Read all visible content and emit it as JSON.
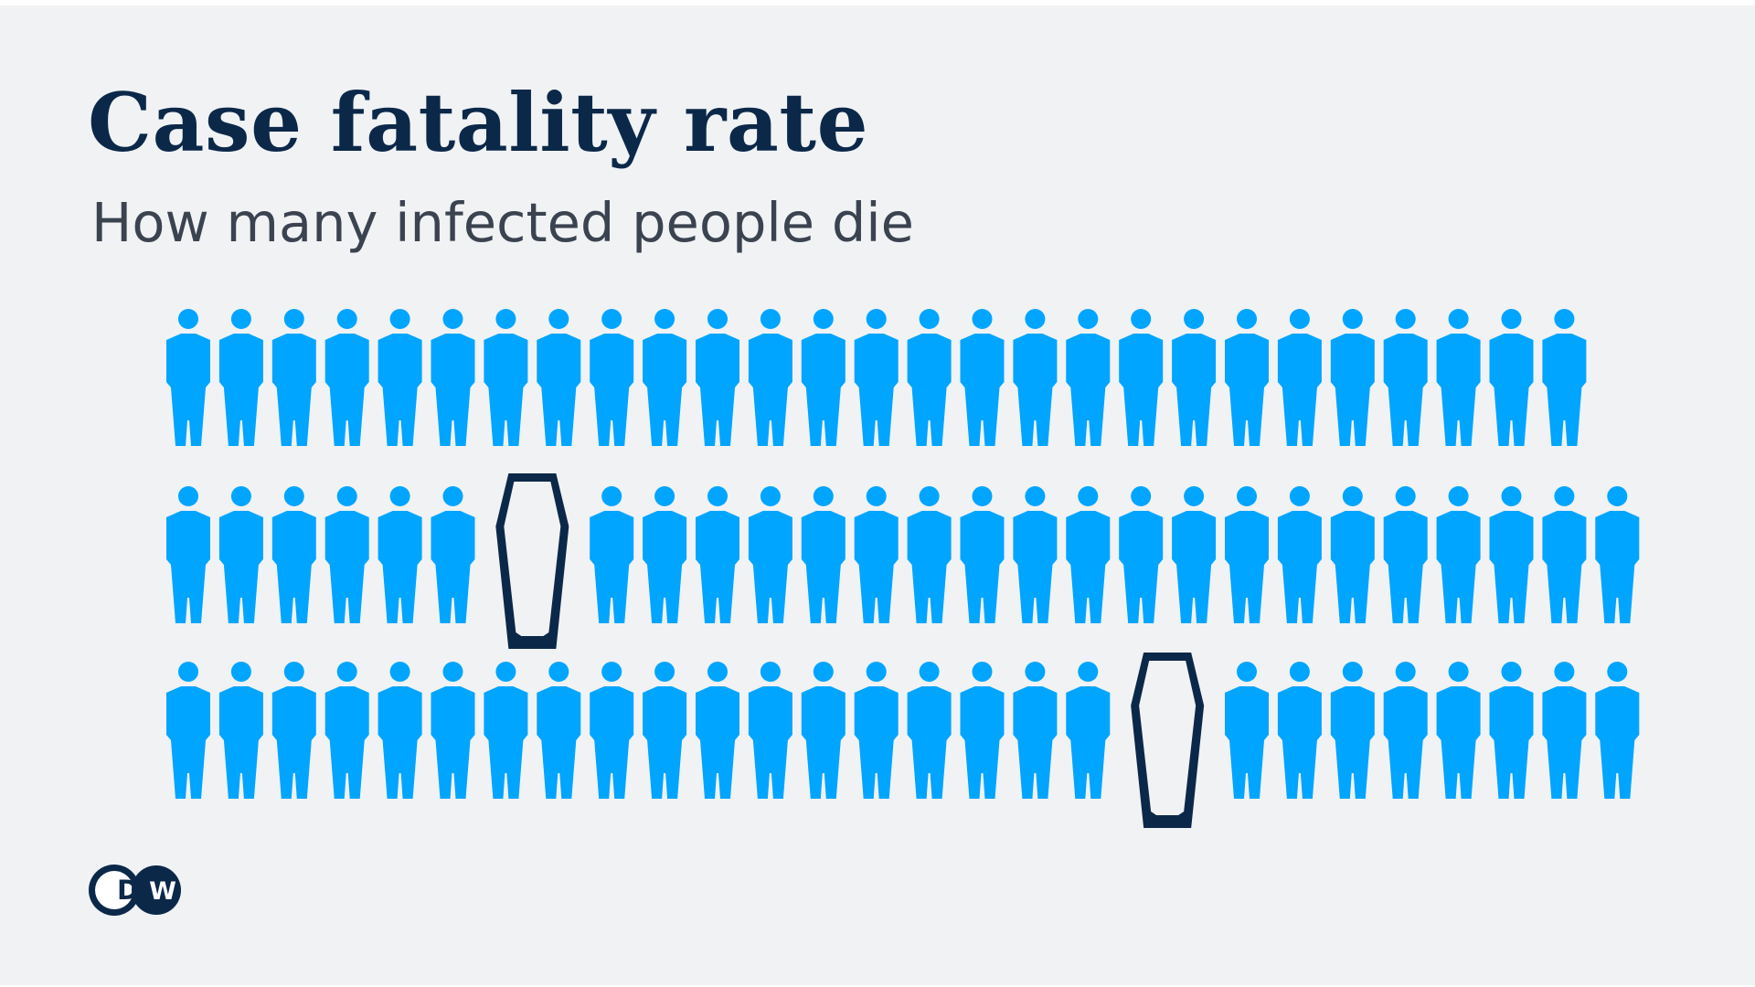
{
  "title": "Case fatality rate",
  "subtitle": "How many infected people die",
  "logo": {
    "text": "DW",
    "icon": "dw-logo"
  },
  "colors": {
    "background": "#f0f2f4",
    "person": "#00a5ff",
    "coffin": "#0c2849",
    "title": "#0c2849",
    "subtitle": "#3a434f"
  },
  "chart_data": {
    "type": "pictograph",
    "title": "Case fatality rate",
    "subtitle": "How many infected people die",
    "total": 81,
    "rows": 3,
    "per_row": 27,
    "survivors": 79,
    "deaths": 2,
    "death_positions": [
      {
        "row": 2,
        "index": 7
      },
      {
        "row": 3,
        "index": 19
      }
    ],
    "icons": {
      "survivor": "person-icon",
      "death": "coffin-icon"
    }
  }
}
